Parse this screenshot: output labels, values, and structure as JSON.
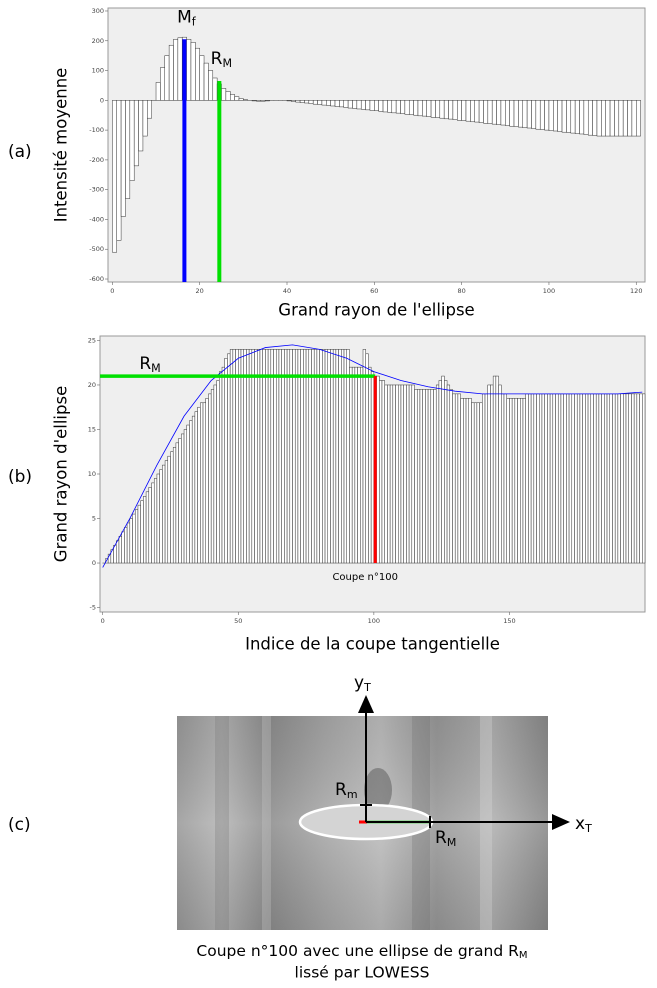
{
  "chart_data": [
    {
      "type": "bar",
      "xlabel": "Grand rayon de l'ellipse",
      "ylabel": "Intensité moyenne",
      "x": [
        0,
        1,
        2,
        3,
        4,
        5,
        6,
        7,
        8,
        9,
        10,
        11,
        12,
        13,
        14,
        15,
        16,
        17,
        18,
        19,
        20,
        21,
        22,
        23,
        24,
        25,
        26,
        27,
        28,
        29,
        30,
        31,
        32,
        33,
        34,
        35,
        36,
        37,
        38,
        39,
        40,
        41,
        42,
        43,
        44,
        45,
        46,
        47,
        48,
        49,
        50,
        51,
        52,
        53,
        54,
        55,
        56,
        57,
        58,
        59,
        60,
        61,
        62,
        63,
        64,
        65,
        66,
        67,
        68,
        69,
        70,
        71,
        72,
        73,
        74,
        75,
        76,
        77,
        78,
        79,
        80,
        81,
        82,
        83,
        84,
        85,
        86,
        87,
        88,
        89,
        90,
        91,
        92,
        93,
        94,
        95,
        96,
        97,
        98,
        99,
        100,
        101,
        102,
        103,
        104,
        105,
        106,
        107,
        108,
        109,
        110,
        111,
        112,
        113,
        114,
        115,
        116,
        117,
        118,
        119,
        120
      ],
      "values": [
        -510,
        -470,
        -390,
        -330,
        -270,
        -220,
        -170,
        -120,
        -60,
        0,
        60,
        110,
        150,
        185,
        205,
        210,
        212,
        205,
        195,
        175,
        150,
        125,
        100,
        75,
        55,
        40,
        30,
        20,
        12,
        6,
        2,
        0,
        -2,
        -3,
        -3,
        -2,
        0,
        0,
        0,
        0,
        -2,
        -4,
        -6,
        -8,
        -9,
        -11,
        -13,
        -14,
        -16,
        -17,
        -19,
        -21,
        -22,
        -24,
        -26,
        -27,
        -29,
        -30,
        -32,
        -34,
        -35,
        -37,
        -39,
        -40,
        -42,
        -43,
        -45,
        -47,
        -48,
        -50,
        -52,
        -53,
        -55,
        -57,
        -58,
        -60,
        -62,
        -63,
        -65,
        -67,
        -68,
        -70,
        -72,
        -73,
        -75,
        -77,
        -78,
        -80,
        -82,
        -83,
        -85,
        -87,
        -88,
        -90,
        -92,
        -93,
        -95,
        -97,
        -98,
        -100,
        -102,
        -103,
        -105,
        -107,
        -108,
        -110,
        -112,
        -113,
        -115,
        -117,
        -118,
        -120,
        -120,
        -120,
        -120,
        -120,
        -120,
        -120,
        -120,
        -120,
        -120
      ],
      "xlim": [
        -1,
        122
      ],
      "xticks": [
        0,
        20,
        40,
        60,
        80,
        100,
        120
      ],
      "ylim": [
        -610,
        310
      ],
      "yticks": [
        -600,
        -500,
        -400,
        -300,
        -200,
        -100,
        0,
        100,
        200,
        300
      ],
      "annotations": [
        {
          "label": "M",
          "sub": "f",
          "x": 16.5,
          "value": 205,
          "color": "#0000ff"
        },
        {
          "label": "R",
          "sub": "M",
          "x": 24.5,
          "value": 65,
          "color": "#00e000"
        }
      ]
    },
    {
      "type": "bar",
      "xlabel": "Indice de la coupe tangentielle",
      "ylabel": "Grand rayon d'ellipse",
      "x": [
        0,
        1,
        2,
        3,
        4,
        5,
        6,
        7,
        8,
        9,
        10,
        11,
        12,
        13,
        14,
        15,
        16,
        17,
        18,
        19,
        20,
        21,
        22,
        23,
        24,
        25,
        26,
        27,
        28,
        29,
        30,
        31,
        32,
        33,
        34,
        35,
        36,
        37,
        38,
        39,
        40,
        41,
        42,
        43,
        44,
        45,
        46,
        47,
        48,
        49,
        50,
        51,
        52,
        53,
        54,
        55,
        56,
        57,
        58,
        59,
        60,
        61,
        62,
        63,
        64,
        65,
        66,
        67,
        68,
        69,
        70,
        71,
        72,
        73,
        74,
        75,
        76,
        77,
        78,
        79,
        80,
        81,
        82,
        83,
        84,
        85,
        86,
        87,
        88,
        89,
        90,
        91,
        92,
        93,
        94,
        95,
        96,
        97,
        98,
        99,
        100,
        101,
        102,
        103,
        104,
        105,
        106,
        107,
        108,
        109,
        110,
        111,
        112,
        113,
        114,
        115,
        116,
        117,
        118,
        119,
        120,
        121,
        122,
        123,
        124,
        125,
        126,
        127,
        128,
        129,
        130,
        131,
        132,
        133,
        134,
        135,
        136,
        137,
        138,
        139,
        140,
        141,
        142,
        143,
        144,
        145,
        146,
        147,
        148,
        149,
        150,
        151,
        152,
        153,
        154,
        155,
        156,
        157,
        158,
        159,
        160,
        161,
        162,
        163,
        164,
        165,
        166,
        167,
        168,
        169,
        170,
        171,
        172,
        173,
        174,
        175,
        176,
        177,
        178,
        179,
        180,
        181,
        182,
        183,
        184,
        185,
        186,
        187,
        188,
        189,
        190,
        191,
        192,
        193,
        194,
        195,
        196,
        197,
        198,
        199
      ],
      "values": [
        0,
        0.5,
        1,
        1.5,
        2,
        2.5,
        3,
        3.5,
        4,
        4.5,
        5,
        5.5,
        6,
        6.5,
        7,
        7.5,
        8,
        8.5,
        9,
        9.5,
        10,
        10.5,
        11,
        11.5,
        12,
        12.5,
        13,
        13.5,
        14,
        14.5,
        15,
        15.5,
        16,
        16.5,
        17,
        17.5,
        18,
        18,
        18.5,
        19,
        19.5,
        20,
        20.5,
        21.5,
        22,
        23,
        23.5,
        24,
        24,
        24,
        24,
        24,
        24,
        24,
        24,
        24,
        24,
        24,
        24,
        24,
        24,
        24,
        24,
        24,
        24,
        24,
        24,
        24,
        24,
        24,
        24,
        24,
        24,
        24,
        24,
        24,
        24,
        24,
        24,
        24,
        24,
        24,
        24,
        24,
        24,
        24,
        24,
        24,
        24,
        24,
        24,
        22,
        22,
        22,
        22,
        22,
        24,
        23.5,
        22,
        21.5,
        21,
        21,
        20.5,
        20.5,
        20,
        20,
        20,
        20,
        20,
        20,
        20,
        20,
        20,
        20,
        20,
        19.5,
        19.5,
        19.5,
        19.5,
        19.5,
        19.5,
        19.5,
        19.5,
        20,
        20.5,
        21,
        20.5,
        20,
        19.5,
        19,
        19,
        19,
        18.5,
        18.5,
        18.5,
        18.5,
        18,
        18,
        18,
        18,
        19,
        19,
        20,
        20,
        21,
        21,
        20,
        19,
        19,
        18.5,
        18.5,
        18.5,
        18.5,
        18.5,
        18.5,
        18.5,
        19,
        19,
        19,
        19,
        19,
        19,
        19,
        19,
        19,
        19,
        19,
        19,
        19,
        19,
        19,
        19,
        19,
        19,
        19,
        19,
        19,
        19,
        19,
        19,
        19,
        19,
        19,
        19,
        19,
        19,
        19,
        19,
        19,
        19,
        19,
        19,
        19,
        19,
        19,
        19,
        19,
        19,
        19,
        19
      ],
      "xlim": [
        -1,
        200
      ],
      "xticks": [
        0,
        50,
        100,
        150
      ],
      "ylim": [
        -5.5,
        25.5
      ],
      "yticks": [
        -5,
        0,
        5,
        10,
        15,
        20,
        25
      ],
      "curve": {
        "color": "#0000ff",
        "x": [
          0,
          10,
          20,
          30,
          40,
          50,
          60,
          70,
          80,
          90,
          100,
          110,
          120,
          130,
          140,
          150,
          160,
          170,
          180,
          190,
          199
        ],
        "values": [
          -0.5,
          5,
          11,
          16.5,
          20.5,
          23,
          24.2,
          24.5,
          24,
          23,
          21.5,
          20.5,
          19.8,
          19.3,
          19,
          19,
          19,
          19,
          19,
          19,
          19.2
        ]
      },
      "hline": {
        "label": "R",
        "sub": "M",
        "value": 21,
        "color": "#00e000"
      },
      "marker": {
        "label": "Coupe  n°100",
        "x": 100,
        "value": 21,
        "color": "#ff0000"
      }
    }
  ],
  "panel_labels": [
    "(a)",
    "(b)",
    "(c)"
  ],
  "figure_c": {
    "y_axis": {
      "label": "y",
      "sub": "T"
    },
    "x_axis": {
      "label": "x",
      "sub": "T"
    },
    "minor": {
      "label": "R",
      "sub": "m"
    },
    "major": {
      "label": "R",
      "sub": "M"
    },
    "caption": {
      "label": "Coupe n°100 avec une ellipse de grand R",
      "sub": "M"
    },
    "caption2": "lissé par LOWESS"
  }
}
